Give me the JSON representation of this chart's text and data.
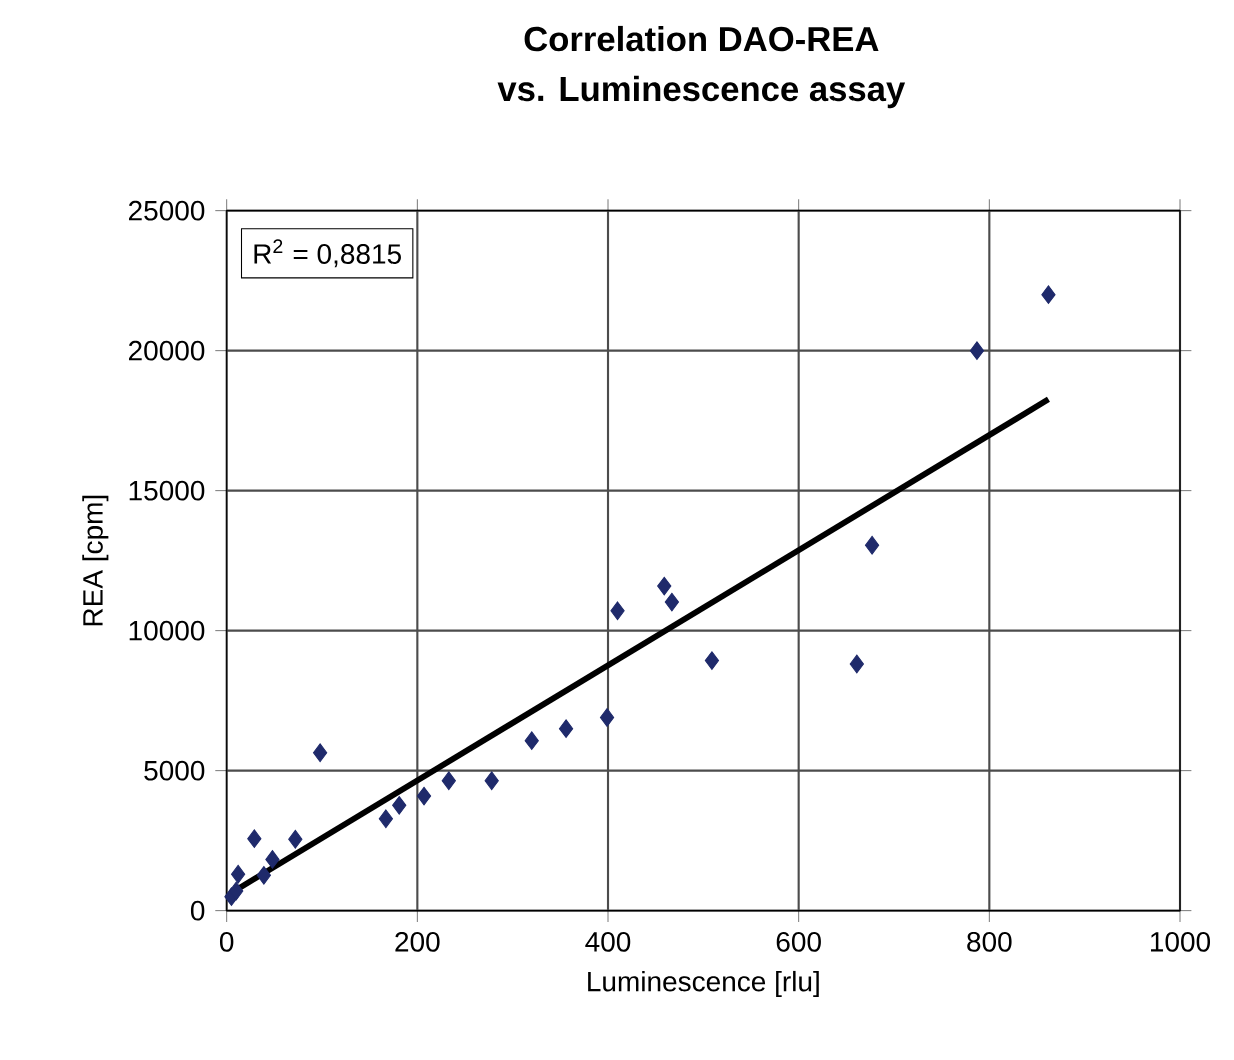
{
  "chart_data": {
    "type": "scatter",
    "title": "Correlation DAO-REA",
    "subtitle": "vs. Luminescence assay",
    "xlabel": "Luminescence [rlu]",
    "ylabel": "REA [cpm]",
    "annotations": [
      "R$^{2}$ = 0,8815"
    ],
    "xlim": [
      0,
      1000
    ],
    "ylim": [
      0,
      25000
    ],
    "xticks": [
      0,
      200,
      400,
      600,
      800,
      1000
    ],
    "yticks": [
      0,
      5000,
      10000,
      15000,
      20000,
      25000
    ],
    "grid": true,
    "marker": "diamond",
    "series": [
      {
        "color": "#1f2a6b",
        "x": [
          5,
          10,
          12,
          39,
          48,
          29,
          72,
          98,
          167,
          181,
          207,
          233,
          278,
          320,
          356,
          399,
          410,
          459,
          467,
          509,
          661,
          677,
          787,
          862
        ],
        "values": [
          500,
          700,
          1300,
          1260,
          1830,
          2570,
          2550,
          5640,
          3280,
          3760,
          4090,
          4640,
          4640,
          6070,
          6500,
          6900,
          10710,
          11590,
          11020,
          8930,
          8810,
          13050,
          20000,
          22000
        ]
      },
      {
        "type": "line",
        "color": "#000000",
        "marker": "none",
        "x": [
          6,
          862
        ],
        "values": [
          660,
          18260
        ]
      }
    ]
  }
}
